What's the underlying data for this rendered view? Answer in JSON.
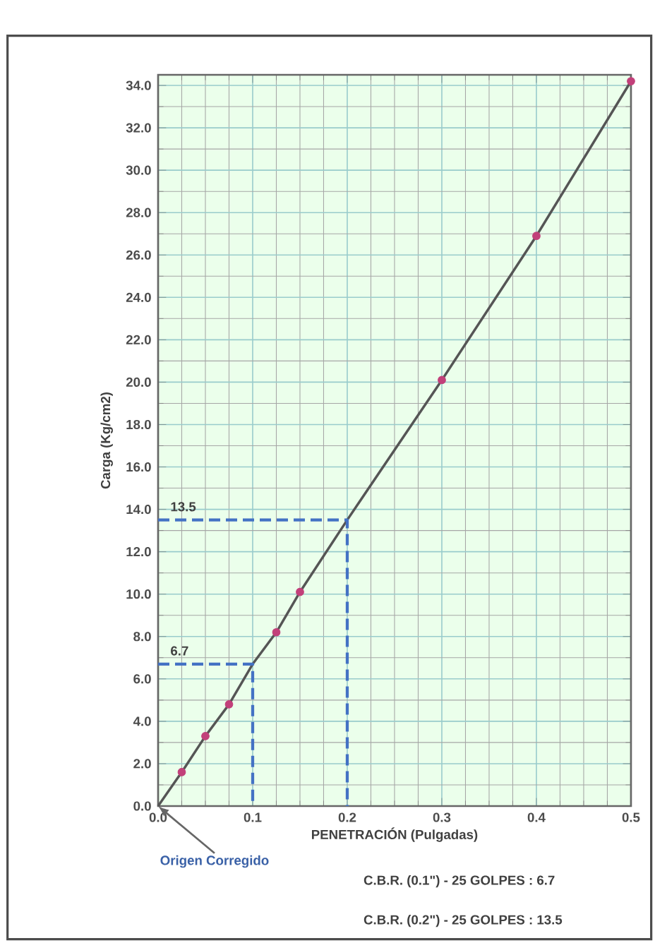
{
  "chart_data": {
    "type": "line",
    "xlabel": "PENETRACIÓN (Pulgadas)",
    "ylabel": "Carga (Kg/cm2)",
    "x": [
      0,
      0.025,
      0.05,
      0.075,
      0.1,
      0.125,
      0.15,
      0.2,
      0.3,
      0.4,
      0.5
    ],
    "series": [
      {
        "type": "line",
        "color": "#555555",
        "marker": "none",
        "values": [
          0,
          1.6,
          3.3,
          4.8,
          6.7,
          8.2,
          10.1,
          13.5,
          20.1,
          26.9,
          34.2
        ]
      },
      {
        "color": "#4472c4",
        "marker": "none",
        "line_style": "dashed",
        "x": [
          0,
          0.1,
          0.1
        ],
        "values": [
          6.7,
          6.7,
          0
        ],
        "value_labels": [
          "6.7",
          null,
          null
        ]
      },
      {
        "color": "#4472c4",
        "marker": "none",
        "line_style": "dashed",
        "x": [
          0,
          0.2,
          0.2
        ],
        "values": [
          13.5,
          13.5,
          0
        ],
        "value_labels": [
          "13.5",
          null,
          null
        ]
      },
      {
        "type": "scatter",
        "color": "#c2407a",
        "marker": "circle",
        "x": [
          0.025,
          0.05,
          0.075,
          0.125,
          0.15,
          0.3,
          0.4,
          0.5
        ],
        "values": [
          1.6,
          3.3,
          4.8,
          8.2,
          10.1,
          20.1,
          26.9,
          34.2
        ]
      }
    ],
    "xlim": [
      0,
      0.5
    ],
    "ylim": [
      0,
      34.5
    ],
    "xticks": [
      {
        "value": 0,
        "label": "0.0"
      },
      {
        "value": 0.1,
        "label": "0.1"
      },
      {
        "value": 0.2,
        "label": "0.2"
      },
      {
        "value": 0.3,
        "label": "0.3"
      },
      {
        "value": 0.4,
        "label": "0.4"
      },
      {
        "value": 0.5,
        "label": "0.5"
      }
    ],
    "yticks": [
      {
        "value": 0,
        "label": "0.0"
      },
      {
        "value": 2,
        "label": "2.0"
      },
      {
        "value": 4,
        "label": "4.0"
      },
      {
        "value": 6,
        "label": "6.0"
      },
      {
        "value": 8,
        "label": "8.0"
      },
      {
        "value": 10,
        "label": "10.0"
      },
      {
        "value": 12,
        "label": "12.0"
      },
      {
        "value": 14,
        "label": "14.0"
      },
      {
        "value": 16,
        "label": "16.0"
      },
      {
        "value": 18,
        "label": "18.0"
      },
      {
        "value": 20,
        "label": "20.0"
      },
      {
        "value": 22,
        "label": "22.0"
      },
      {
        "value": 24,
        "label": "24.0"
      },
      {
        "value": 26,
        "label": "26.0"
      },
      {
        "value": 28,
        "label": "28.0"
      },
      {
        "value": 30,
        "label": "30.0"
      },
      {
        "value": 32,
        "label": "32.0"
      },
      {
        "value": 34,
        "label": "34.0"
      }
    ],
    "grid": true,
    "annotations": [
      {
        "text": "Origen Corregido",
        "x": 0,
        "y": 0
      },
      "C.B.R. (0.1\") - 25 GOLPES : 6.7",
      "C.B.R. (0.2\") - 25 GOLPES : 13.5"
    ]
  }
}
